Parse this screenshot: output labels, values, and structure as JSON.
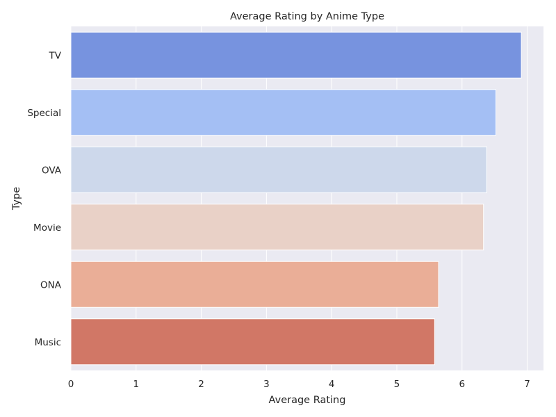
{
  "chart_data": {
    "type": "bar",
    "orientation": "horizontal",
    "title": "Average Rating by Anime Type",
    "xlabel": "Average Rating",
    "ylabel": "Type",
    "categories": [
      "TV",
      "Special",
      "OVA",
      "Movie",
      "ONA",
      "Music"
    ],
    "values": [
      6.91,
      6.52,
      6.38,
      6.33,
      5.64,
      5.58
    ],
    "colors": [
      "#7793df",
      "#a4bff4",
      "#cdd8eb",
      "#e9d1c7",
      "#eaae97",
      "#d17766"
    ],
    "xlim": [
      0,
      7.25
    ],
    "xticks": [
      0,
      1,
      2,
      3,
      4,
      5,
      6,
      7
    ],
    "grid": true,
    "background": "#eaeaf2",
    "legend": "none"
  }
}
